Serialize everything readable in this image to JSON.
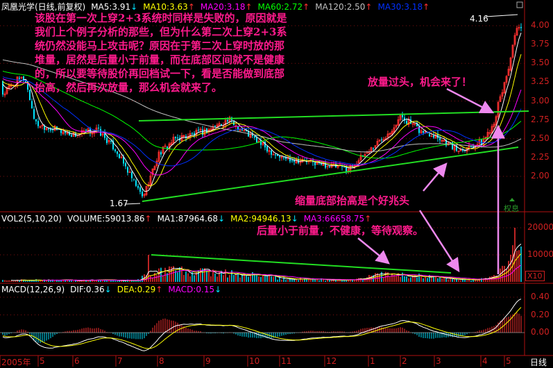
{
  "header": {
    "title": "凤凰光学(日线,前复权)",
    "ma": [
      {
        "label": "MA5:3.91",
        "color": "#ffffff",
        "dir": "down"
      },
      {
        "label": "MA10:3.63",
        "color": "#ffff00",
        "dir": "up"
      },
      {
        "label": "MA20:3.18",
        "color": "#ff00ff",
        "dir": "up"
      },
      {
        "label": "MA60:2.72",
        "color": "#00ff00",
        "dir": "up"
      },
      {
        "label": "MA120:2.50",
        "color": "#c0c0c0",
        "dir": "up"
      },
      {
        "label": "MA30:3.18",
        "color": "#0030ff",
        "dir": "up"
      }
    ]
  },
  "volume_header": {
    "title": "VOL2(5,10,20)",
    "items": [
      {
        "label": "VOLUME:59013.86",
        "color": "#ffffff",
        "dir": "up"
      },
      {
        "label": "MA1:87964.68",
        "color": "#ffffff",
        "dir": "down"
      },
      {
        "label": "MA2:94946.13",
        "color": "#ffff00",
        "dir": "down"
      },
      {
        "label": "MA3:66658.75",
        "color": "#ff00ff",
        "dir": "up"
      }
    ],
    "scale_label": "X10"
  },
  "macd_header": {
    "title": "MACD(12,26,9)",
    "items": [
      {
        "label": "DIF:0.36",
        "color": "#ffffff",
        "dir": "down"
      },
      {
        "label": "DEA:0.29",
        "color": "#ffff00",
        "dir": "up"
      },
      {
        "label": "MACD:0.15",
        "color": "#ff00ff",
        "dir": "down"
      }
    ]
  },
  "annotations": {
    "main_lines": [
      "该股在第一次上穿2+3系统时同样是失败的，原因就是",
      "我们上个例子分析的那些，但为什么第二次上穿2+3系",
      "统仍然没能马上攻击呢？原因在于第二次上穿时放的那",
      "堆量，居然是后量小于前量，而在底部区间就不是健康",
      "的，所以要等待股价再回档试一下，看是否能做到底部",
      "抬高，然后再次放量，那么机会就来了。"
    ],
    "breakout": "放量过头，机会来了！",
    "bottom_rise": "缩量底部抬高是个好兆头",
    "volume_note": "后量小于前量，不健康，等待观察。",
    "high_label": "4.16",
    "low_label": "1.67",
    "ex_rights": "权息"
  },
  "axis": {
    "period": "日线"
  },
  "colors": {
    "up": "#ff3030",
    "down": "#00e5ff",
    "annotation": "#ff1a8c",
    "trendline": "#22dd22",
    "axis": "#d02020",
    "arrow": "#ee88ee"
  },
  "chart_data": [
    {
      "type": "candlestick",
      "panel": "price",
      "y_ticks": [
        "4.00",
        "3.75",
        "3.50",
        "3.25",
        "3.00",
        "2.75",
        "2.50",
        "2.25",
        "2.00"
      ],
      "ylim": [
        1.6,
        4.2
      ],
      "x_ticks": [
        "2005年",
        "5",
        "6",
        "7",
        "8",
        "9",
        "10",
        "11",
        "12",
        "1",
        "2",
        "3",
        "4",
        "5"
      ],
      "grid": "dotted at 2.0/2.5/3.0/3.5/4.0",
      "high": 4.16,
      "low": 1.67,
      "close_keypoints": [
        [
          "2005-04-04",
          3.1
        ],
        [
          "2005-04-12",
          3.25
        ],
        [
          "2005-04-20",
          3.3
        ],
        [
          "2005-04-28",
          2.7
        ],
        [
          "2005-05-20",
          2.6
        ],
        [
          "2005-06-01",
          2.55
        ],
        [
          "2005-06-17",
          2.62
        ],
        [
          "2005-06-30",
          2.35
        ],
        [
          "2005-07-20",
          1.72
        ],
        [
          "2005-08-01",
          2.3
        ],
        [
          "2005-08-12",
          2.5
        ],
        [
          "2005-09-01",
          2.6
        ],
        [
          "2005-09-17",
          2.75
        ],
        [
          "2005-10-01",
          2.55
        ],
        [
          "2005-10-20",
          2.35
        ],
        [
          "2005-11-01",
          2.25
        ],
        [
          "2005-11-17",
          2.2
        ],
        [
          "2005-12-01",
          2.15
        ],
        [
          "2005-12-17",
          2.1
        ],
        [
          "2006-01-01",
          2.35
        ],
        [
          "2006-01-20",
          2.6
        ],
        [
          "2006-02-01",
          2.8
        ],
        [
          "2006-02-16",
          2.6
        ],
        [
          "2006-03-01",
          2.55
        ],
        [
          "2006-03-15",
          2.35
        ],
        [
          "2006-04-01",
          2.45
        ],
        [
          "2006-04-15",
          2.7
        ],
        [
          "2006-05-01",
          3.3
        ],
        [
          "2006-05-10",
          4.0
        ],
        [
          "2006-05-16",
          3.75
        ]
      ],
      "moving_averages": [
        "MA5",
        "MA10",
        "MA20",
        "MA60",
        "MA120",
        "MA30"
      ]
    },
    {
      "type": "bar",
      "panel": "volume",
      "y_ticks": [
        "20000",
        "10000"
      ],
      "volume_keypoints": [
        [
          "2005-04-04",
          700
        ],
        [
          "2005-07-15",
          600
        ],
        [
          "2005-07-25",
          3000
        ],
        [
          "2005-08-10",
          4000
        ],
        [
          "2005-09-10",
          3500
        ],
        [
          "2005-10-10",
          2500
        ],
        [
          "2005-11-01",
          1200
        ],
        [
          "2005-12-20",
          700
        ],
        [
          "2006-01-10",
          2500
        ],
        [
          "2006-02-10",
          2500
        ],
        [
          "2006-03-05",
          1200
        ],
        [
          "2006-03-25",
          700
        ],
        [
          "2006-04-15",
          1500
        ],
        [
          "2006-05-05",
          9000
        ],
        [
          "2006-05-10",
          14000
        ],
        [
          "2006-05-16",
          6000
        ]
      ],
      "peak_values": [
        [
          "2005-07-25",
          10000
        ],
        [
          "2006-05-08",
          20000
        ]
      ]
    },
    {
      "type": "line",
      "panel": "macd",
      "y_ticks": [
        "0.40",
        "0.20",
        "0.00"
      ],
      "series": [
        {
          "name": "DIF",
          "last": 0.36
        },
        {
          "name": "DEA",
          "last": 0.29
        },
        {
          "name": "MACD",
          "last": 0.15
        }
      ]
    }
  ]
}
